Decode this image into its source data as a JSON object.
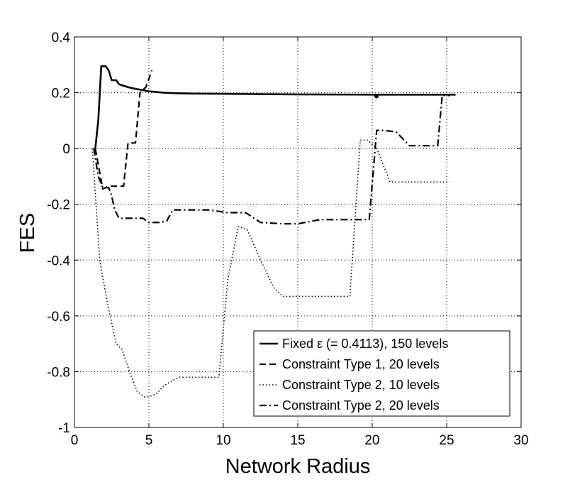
{
  "chart_data": {
    "type": "line",
    "xlabel": "Network Radius",
    "ylabel": "FES",
    "xlim": [
      0,
      30
    ],
    "ylim": [
      -1,
      0.4
    ],
    "xticks": [
      0,
      5,
      10,
      15,
      20,
      25,
      30
    ],
    "yticks": [
      -1,
      -0.8,
      -0.6,
      -0.4,
      -0.2,
      0,
      0.2,
      0.4
    ],
    "xtick_labels": [
      "0",
      "5",
      "10",
      "15",
      "20",
      "25",
      "30"
    ],
    "ytick_labels": [
      "-1",
      "-0.8",
      "-0.6",
      "-0.4",
      "-0.2",
      "0",
      "0.2",
      "0.4"
    ],
    "grid": true,
    "legend_position": "bottom-right",
    "series": [
      {
        "name": "Fixed ε (= 0.4113), 150 levels",
        "style": "solid",
        "color": "#000000",
        "x": [
          1.4,
          1.6,
          1.8,
          2.1,
          2.3,
          2.5,
          2.8,
          3.0,
          3.3,
          3.6,
          4.0,
          4.5,
          5.0,
          6.0,
          7.0,
          8.0,
          10.0,
          12.0,
          15.0,
          20.0,
          25.0,
          25.6
        ],
        "y": [
          0.0,
          0.1,
          0.295,
          0.295,
          0.28,
          0.245,
          0.245,
          0.23,
          0.225,
          0.22,
          0.215,
          0.21,
          0.205,
          0.2,
          0.198,
          0.197,
          0.196,
          0.195,
          0.194,
          0.193,
          0.193,
          0.193
        ]
      },
      {
        "name": "Constraint Type 1, 20 levels",
        "style": "dashed",
        "color": "#000000",
        "x": [
          1.4,
          1.9,
          2.3,
          2.5,
          3.3,
          3.6,
          3.9,
          4.1,
          4.4,
          4.6,
          4.8,
          5.0,
          5.2
        ],
        "y": [
          0.0,
          -0.145,
          -0.135,
          -0.135,
          -0.135,
          0.02,
          0.02,
          0.02,
          0.2,
          0.21,
          0.22,
          0.25,
          0.28
        ]
      },
      {
        "name": "Constraint Type 2, 10 levels",
        "style": "dotted",
        "color": "#000000",
        "x": [
          1.2,
          1.7,
          2.2,
          2.8,
          3.2,
          3.7,
          4.2,
          4.7,
          5.0,
          5.5,
          6.0,
          7.0,
          9.7,
          10.3,
          11.0,
          11.6,
          12.5,
          13.4,
          14.0,
          18.5,
          19.2,
          19.7,
          20.3,
          21.2,
          25.2
        ],
        "y": [
          0.0,
          -0.4,
          -0.55,
          -0.7,
          -0.72,
          -0.8,
          -0.87,
          -0.89,
          -0.89,
          -0.88,
          -0.85,
          -0.82,
          -0.82,
          -0.47,
          -0.28,
          -0.29,
          -0.4,
          -0.5,
          -0.53,
          -0.53,
          0.03,
          0.03,
          0.0,
          -0.12,
          -0.12
        ]
      },
      {
        "name": "Constraint Type 2, 20 levels",
        "style": "dashdot",
        "color": "#000000",
        "x": [
          1.3,
          1.6,
          1.9,
          2.3,
          2.5,
          2.7,
          3.0,
          3.6,
          4.0,
          4.6,
          5.0,
          5.7,
          6.2,
          6.6,
          9.0,
          10.3,
          11.5,
          12.5,
          14.0,
          15.0,
          16.5,
          17.5,
          19.3,
          19.8,
          20.3,
          20.7,
          21.6,
          22.5,
          24.4,
          24.7,
          25.2
        ],
        "y": [
          0.0,
          -0.1,
          -0.14,
          -0.14,
          -0.17,
          -0.22,
          -0.25,
          -0.25,
          -0.25,
          -0.25,
          -0.265,
          -0.265,
          -0.26,
          -0.22,
          -0.22,
          -0.23,
          -0.23,
          -0.265,
          -0.27,
          -0.27,
          -0.255,
          -0.255,
          -0.255,
          -0.255,
          0.065,
          0.065,
          0.06,
          0.01,
          0.01,
          0.19,
          0.19
        ]
      }
    ]
  }
}
